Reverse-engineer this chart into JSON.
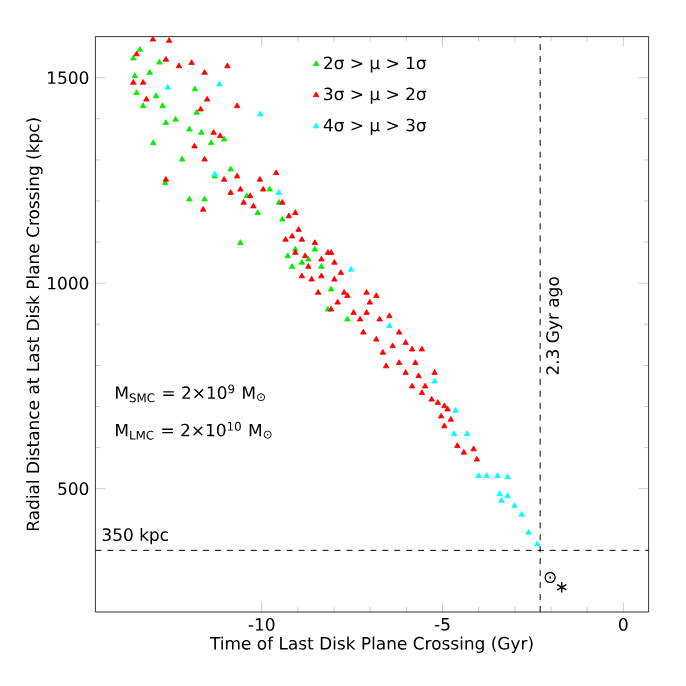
{
  "chart_data": {
    "type": "scatter",
    "xlabel": "Time of Last Disk Plane Crossing (Gyr)",
    "ylabel": "Radial Distance at Last Disk Plane Crossing (kpc)",
    "xlim": [
      -14.6,
      0.7
    ],
    "ylim": [
      200,
      1600
    ],
    "xticks": [
      -10,
      -5,
      0
    ],
    "yticks": [
      500,
      1000,
      1500
    ],
    "marker": "triangle",
    "legend": "top",
    "grid": false,
    "series": [
      {
        "name": "2σ > μ > 1σ",
        "color": "#00ee00",
        "x": [
          -13.37,
          -13.55,
          -13.51,
          -13.46,
          -13.28,
          -13.1,
          -12.92,
          -12.74,
          -12.65,
          -13.0,
          -12.67,
          -12.38,
          -12.2,
          -12.0,
          -11.85,
          -11.8,
          -11.67,
          -12.0,
          -11.58,
          -11.4,
          -11.3,
          -11.04,
          -10.86,
          -10.59,
          -10.41,
          -10.11,
          -9.78,
          -9.52,
          -9.43,
          -9.28,
          -9.07,
          -8.89,
          -8.71,
          -8.53,
          -9.16,
          -8.08,
          -8.17,
          -7.63,
          -8.35,
          -12.83
        ],
        "values": [
          1568,
          1547,
          1504,
          1463,
          1431,
          1512,
          1455,
          1431,
          1390,
          1341,
          1244,
          1398,
          1301,
          1374,
          1472,
          1415,
          1366,
          1204,
          1204,
          1341,
          1260,
          1350,
          1277,
          1098,
          1212,
          1171,
          1228,
          1196,
          1155,
          1066,
          1082,
          1050,
          1058,
          1082,
          1040,
          985,
          936,
          912,
          1040,
          1537
        ]
      },
      {
        "name": "3σ > μ > 2σ",
        "color": "#ff0000",
        "x": [
          -13.46,
          -13.01,
          -12.56,
          -13.55,
          -13.28,
          -13.19,
          -12.65,
          -12.29,
          -11.94,
          -11.58,
          -10.95,
          -10.68,
          -11.51,
          -11.69,
          -11.33,
          -11.15,
          -11.86,
          -11.58,
          -12.65,
          -11.04,
          -10.68,
          -10.59,
          -10.32,
          -10.86,
          -10.05,
          -9.96,
          -9.6,
          -9.43,
          -10.23,
          -10.5,
          -11.62,
          -9.25,
          -9.07,
          -8.98,
          -9.16,
          -8.89,
          -9.34,
          -9.07,
          -8.8,
          -8.53,
          -8.35,
          -8.17,
          -7.99,
          -8.08,
          -8.89,
          -8.62,
          -8.44,
          -8.35,
          -7.99,
          -7.81,
          -7.72,
          -7.63,
          -7.9,
          -7.46,
          -7.28,
          -7.1,
          -7.01,
          -6.83,
          -7.1,
          -6.74,
          -6.47,
          -7.19,
          -6.83,
          -6.65,
          -6.38,
          -6.2,
          -6.02,
          -5.84,
          -5.57,
          -6.56,
          -6.2,
          -6.02,
          -5.75,
          -5.66,
          -5.48,
          -5.22,
          -5.84,
          -5.57,
          -5.3,
          -5.13,
          -4.95,
          -5.04,
          -4.86,
          -4.95,
          -4.77,
          -4.59,
          -4.14,
          -4.05,
          -4.41,
          -8.08,
          -8.71
        ],
        "values": [
          1557,
          1593,
          1590,
          1488,
          1488,
          1447,
          1544,
          1528,
          1536,
          1512,
          1528,
          1431,
          1447,
          1423,
          1366,
          1358,
          1333,
          1301,
          1252,
          1252,
          1260,
          1228,
          1212,
          1220,
          1252,
          1228,
          1268,
          1196,
          1187,
          1196,
          1179,
          1163,
          1171,
          1130,
          1114,
          1106,
          1106,
          1074,
          1066,
          1098,
          1058,
          1074,
          1050,
          1074,
          1017,
          1009,
          977,
          1017,
          1009,
          1025,
          977,
          969,
          953,
          928,
          912,
          977,
          953,
          969,
          928,
          912,
          920,
          880,
          863,
          831,
          847,
          880,
          855,
          839,
          839,
          798,
          806,
          782,
          806,
          774,
          749,
          782,
          749,
          733,
          717,
          709,
          701,
          676,
          693,
          652,
          668,
          604,
          596,
          571,
          588,
          936,
          1040
        ]
      },
      {
        "name": "4σ > μ > 3σ",
        "color": "#00ffff",
        "x": [
          -12.6,
          -11.17,
          -10.04,
          -11.3,
          -9.53,
          -7.53,
          -6.47,
          -5.22,
          -4.64,
          -4.68,
          -4.32,
          -4.0,
          -3.78,
          -3.48,
          -3.2,
          -3.42,
          -3.2,
          -3.01,
          -2.81,
          -2.62,
          -2.38,
          -3.37
        ],
        "values": [
          1476,
          1484,
          1411,
          1265,
          1220,
          1033,
          896,
          761,
          690,
          633,
          633,
          531,
          531,
          531,
          528,
          487,
          482,
          458,
          437,
          393,
          365,
          471
        ]
      }
    ],
    "ref_lines": [
      {
        "axis": "x",
        "value": -2.3,
        "label": "2.3 Gyr ago",
        "line_style": "dashed"
      },
      {
        "axis": "y",
        "value": 350,
        "label": "350 kpc",
        "line_style": "dashed"
      }
    ],
    "annotations": [
      "M$_{SMC}$ = 2×10$^{9}$ M$_{⊙}$",
      "M$_{LMC}$ = 2×10$^{10}$ M$_{⊙}$",
      "⊙",
      "∗"
    ]
  }
}
